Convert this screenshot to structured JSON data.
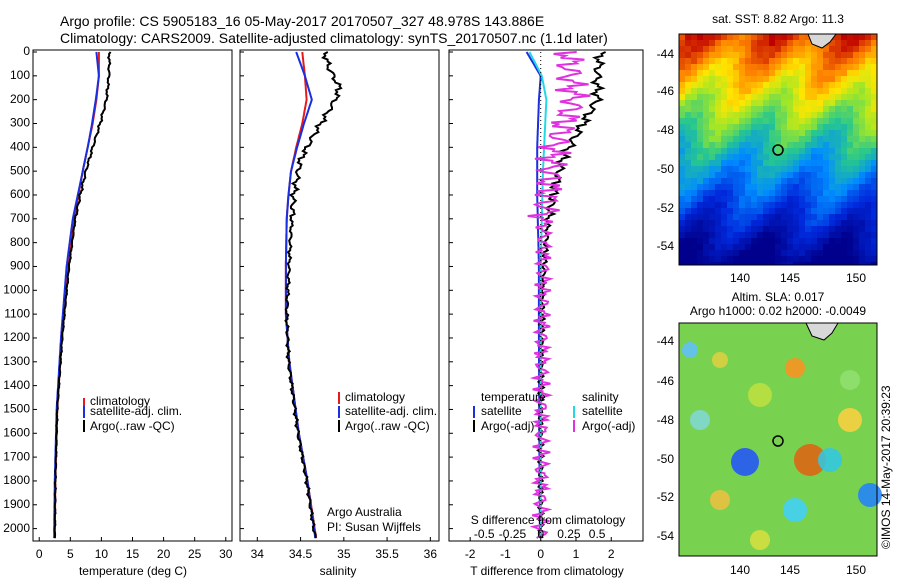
{
  "header": {
    "line1": "Argo profile: CS 5905183_16 05-May-2017 20170507_327 48.978S 143.886E",
    "line2": "Climatology: CARS2009. Satellite-adjusted climatology: synTS_20170507.nc (1.1d later)"
  },
  "colors": {
    "climatology": "#e41a1c",
    "satellite": "#1a2fe0",
    "argo": "#000000",
    "sat_s": "#22d8e8",
    "argo_s": "#e030e0"
  },
  "depth_ticks": [
    "0",
    "100",
    "200",
    "300",
    "400",
    "500",
    "600",
    "700",
    "800",
    "900",
    "1000",
    "1100",
    "1200",
    "1300",
    "1400",
    "1500",
    "1600",
    "1700",
    "1800",
    "1900",
    "2000"
  ],
  "temp_panel": {
    "xlabel": "temperature (deg C)",
    "xticks": [
      "0",
      "5",
      "10",
      "15",
      "20",
      "25",
      "30"
    ],
    "legend": [
      "climatology",
      "satellite-adj. clim.",
      "Argo(..raw -QC)"
    ]
  },
  "sal_panel": {
    "xlabel": "salinity",
    "xticks": [
      "34",
      "34.5",
      "35",
      "35.5",
      "36"
    ],
    "legend": [
      "climatology",
      "satellite-adj. clim.",
      "Argo(..raw -QC)"
    ],
    "credit1": "Argo Australia",
    "credit2": "PI: Susan Wijffels"
  },
  "diff_panel": {
    "xlabel": "T difference from climatology",
    "xticks": [
      "-2",
      "-1",
      "0",
      "1",
      "2"
    ],
    "top_label": "S difference from climatology",
    "s_ticks": [
      "-0.5",
      "-0.25",
      "0",
      "0.25",
      "0.5"
    ],
    "legend_t_title": "temperature",
    "legend_s_title": "salinity",
    "legend_t": [
      "satellite",
      "Argo(-adj)"
    ],
    "legend_s": [
      "satellite",
      "Argo(-adj)"
    ]
  },
  "map_sst": {
    "title": "sat. SST: 8.82  Argo: 11.3",
    "yticks": [
      "-44",
      "-46",
      "-48",
      "-50",
      "-52",
      "-54"
    ],
    "xticks": [
      "140",
      "145",
      "150"
    ]
  },
  "map_sla": {
    "title1": "Altim. SLA: 0.017",
    "title2": "Argo h1000: 0.02 h2000: -0.0049",
    "yticks": [
      "-44",
      "-46",
      "-48",
      "-50",
      "-52",
      "-54"
    ],
    "xticks": [
      "140",
      "145",
      "150"
    ]
  },
  "stamp": "©IMOS 14-May-2017 20:39:23",
  "chart_data": [
    {
      "type": "line",
      "title": "",
      "xlabel": "temperature (deg C)",
      "ylabel": "",
      "xlim": [
        -1,
        31
      ],
      "ylim": [
        2050,
        0
      ],
      "series": [
        {
          "name": "climatology",
          "x": [
            9.6,
            9.6,
            9.2,
            8.6,
            7.8,
            7.0,
            6.3,
            5.6,
            4.6,
            3.6,
            2.9,
            2.6,
            2.5
          ],
          "y": [
            0,
            100,
            200,
            300,
            400,
            500,
            600,
            700,
            900,
            1200,
            1500,
            1800,
            2040
          ]
        },
        {
          "name": "satellite-adj. clim.",
          "x": [
            9.2,
            9.6,
            9.1,
            8.5,
            7.8,
            7.0,
            6.2,
            5.4,
            4.4,
            3.5,
            2.8,
            2.5,
            2.4
          ],
          "y": [
            0,
            100,
            200,
            300,
            400,
            500,
            600,
            700,
            900,
            1200,
            1500,
            1800,
            2040
          ]
        },
        {
          "name": "Argo(..raw -QC)",
          "x": [
            11.3,
            11.2,
            10.8,
            9.8,
            8.6,
            7.5,
            6.6,
            5.8,
            4.8,
            3.7,
            2.9,
            2.6,
            2.5
          ],
          "y": [
            0,
            100,
            200,
            300,
            400,
            500,
            600,
            700,
            900,
            1200,
            1500,
            1800,
            2040
          ]
        }
      ]
    },
    {
      "type": "line",
      "title": "",
      "xlabel": "salinity",
      "ylabel": "",
      "xlim": [
        33.8,
        36.1
      ],
      "ylim": [
        2050,
        0
      ],
      "series": [
        {
          "name": "climatology",
          "x": [
            34.52,
            34.55,
            34.57,
            34.52,
            34.45,
            34.39,
            34.36,
            34.34,
            34.33,
            34.33,
            34.37,
            34.48,
            34.58,
            34.68
          ],
          "y": [
            0,
            100,
            200,
            300,
            400,
            500,
            600,
            700,
            900,
            1100,
            1300,
            1600,
            1800,
            2040
          ]
        },
        {
          "name": "satellite-adj. clim.",
          "x": [
            34.45,
            34.55,
            34.63,
            34.54,
            34.46,
            34.39,
            34.36,
            34.34,
            34.33,
            34.33,
            34.37,
            34.48,
            34.58,
            34.67
          ],
          "y": [
            0,
            100,
            200,
            300,
            400,
            500,
            600,
            700,
            900,
            1100,
            1300,
            1600,
            1800,
            2040
          ]
        },
        {
          "name": "Argo(..raw -QC)",
          "x": [
            34.78,
            34.82,
            34.95,
            34.9,
            34.82,
            34.65,
            34.5,
            34.42,
            34.38,
            34.34,
            34.36,
            34.47,
            34.57,
            34.67
          ],
          "y": [
            0,
            60,
            150,
            200,
            250,
            350,
            450,
            600,
            800,
            1100,
            1300,
            1600,
            1800,
            2040
          ]
        }
      ]
    },
    {
      "type": "line",
      "title": "",
      "xlabel": "T difference from climatology",
      "ylabel": "",
      "xlim": [
        -2.6,
        2.9
      ],
      "ylim": [
        2050,
        0
      ],
      "series": [
        {
          "name": "temperature satellite",
          "x": [
            -0.4,
            0.0,
            -0.05,
            -0.1,
            -0.1,
            -0.05,
            -0.05,
            -0.04,
            -0.02
          ],
          "y": [
            0,
            100,
            200,
            400,
            600,
            900,
            1200,
            1600,
            2040
          ]
        },
        {
          "name": "temperature Argo(-adj)",
          "x": [
            1.7,
            1.6,
            1.6,
            1.2,
            0.6,
            0.2,
            0.05,
            0.0,
            0.0
          ],
          "y": [
            0,
            100,
            200,
            300,
            450,
            700,
            1000,
            1500,
            2040
          ]
        },
        {
          "name": "salinity satellite",
          "x": [
            -0.1,
            0.01,
            0.05,
            0.02,
            0.0,
            0.0,
            0.0
          ],
          "y": [
            0,
            100,
            200,
            500,
            900,
            1500,
            2040
          ]
        },
        {
          "name": "salinity Argo(-adj)",
          "x": [
            0.25,
            0.26,
            0.3,
            0.12,
            0.03,
            0.01,
            0.0
          ],
          "y": [
            0,
            100,
            200,
            400,
            700,
            1200,
            2040
          ]
        }
      ]
    }
  ]
}
